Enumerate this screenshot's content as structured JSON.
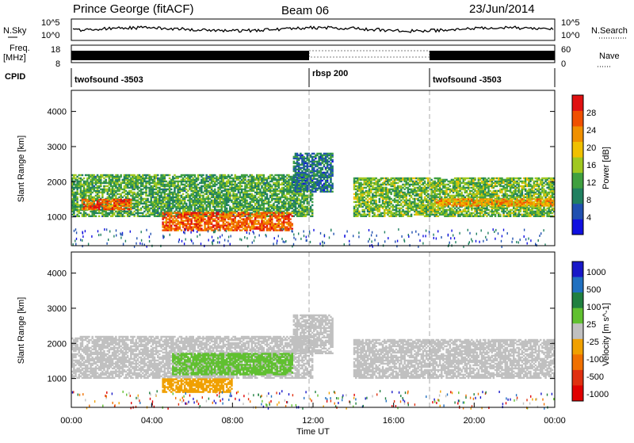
{
  "header": {
    "station": "Prince George (fitACF)",
    "beam": "Beam 06",
    "date": "23/Jun/2014"
  },
  "top_panels": {
    "nsky_label": "N.Sky",
    "nsky_ticks": [
      "10^5",
      "10^0"
    ],
    "nsearch_label": "N.Search",
    "nsearch_ticks": [
      "10^5",
      "10^0"
    ],
    "freq_label": "Freq.",
    "freq_unit": "[MHz]",
    "freq_ticks": [
      "18",
      "8"
    ],
    "nave_label": "Nave",
    "nave_ticks": [
      "60",
      "0"
    ],
    "cpid_label": "CPID",
    "cpid_segments": [
      {
        "name": "twofsound -3503",
        "start_h": 0,
        "end_h": 12
      },
      {
        "name": "rbsp 200",
        "start_h": 12,
        "end_h": 18
      },
      {
        "name": "twofsound -3503",
        "start_h": 18,
        "end_h": 24
      }
    ]
  },
  "chart_data": [
    {
      "type": "heatmap",
      "panel": "power",
      "ylabel": "Slant Range [km]",
      "ylim": [
        180,
        4600
      ],
      "yticks": [
        "1000",
        "2000",
        "3000",
        "4000"
      ],
      "xlim": [
        0,
        24
      ],
      "colorbar_label": "Power [dB]",
      "colorbar_ticks": [
        "4",
        "8",
        "12",
        "16",
        "20",
        "24",
        "28"
      ],
      "colorbar_range": [
        0,
        32
      ],
      "colors": [
        "#1010e0",
        "#2050b0",
        "#208060",
        "#40a040",
        "#a0c820",
        "#f0c000",
        "#f09000",
        "#f05000",
        "#e01010"
      ],
      "bands": [
        {
          "t0": 0,
          "t1": 12,
          "r0": 1000,
          "r1": 2200,
          "level": 12
        },
        {
          "t0": 0.5,
          "t1": 3,
          "r0": 1200,
          "r1": 1500,
          "level": 26
        },
        {
          "t0": 4.5,
          "t1": 11,
          "r0": 600,
          "r1": 1100,
          "level": 26
        },
        {
          "t0": 11,
          "t1": 13,
          "r0": 1700,
          "r1": 2800,
          "level": 8
        },
        {
          "t0": 14,
          "t1": 24,
          "r0": 1000,
          "r1": 2100,
          "level": 14
        },
        {
          "t0": 18,
          "t1": 24,
          "r0": 1300,
          "r1": 1500,
          "level": 22
        }
      ]
    },
    {
      "type": "heatmap",
      "panel": "velocity",
      "ylabel": "Slant Range [km]",
      "ylim": [
        180,
        4600
      ],
      "yticks": [
        "1000",
        "2000",
        "3000",
        "4000"
      ],
      "xlim": [
        0,
        24
      ],
      "xlabel": "Time UT",
      "xticks": [
        "00:00",
        "04:00",
        "08:00",
        "12:00",
        "16:00",
        "20:00",
        "00:00"
      ],
      "colorbar_label": "Velocity [m s^-1]",
      "colorbar_ticks": [
        "1000",
        "500",
        "100",
        "25",
        "-25",
        "-100",
        "-500",
        "-1000"
      ],
      "colors": [
        "#1818c8",
        "#2070c0",
        "#208040",
        "#60c030",
        "#c0c0c0",
        "#f0a000",
        "#f07000",
        "#e03010",
        "#e00000"
      ],
      "ground_scatter_color": "#c0c0c0",
      "bands": [
        {
          "t0": 0,
          "t1": 12,
          "r0": 1000,
          "r1": 2200,
          "level": "gs"
        },
        {
          "t0": 11,
          "t1": 13,
          "r0": 1700,
          "r1": 2800,
          "level": "gs"
        },
        {
          "t0": 14,
          "t1": 24,
          "r0": 1000,
          "r1": 2100,
          "level": "gs"
        },
        {
          "t0": 5,
          "t1": 11,
          "r0": 1100,
          "r1": 1700,
          "level": 100
        },
        {
          "t0": 4.5,
          "t1": 8,
          "r0": 600,
          "r1": 1000,
          "level": -100
        }
      ]
    }
  ]
}
